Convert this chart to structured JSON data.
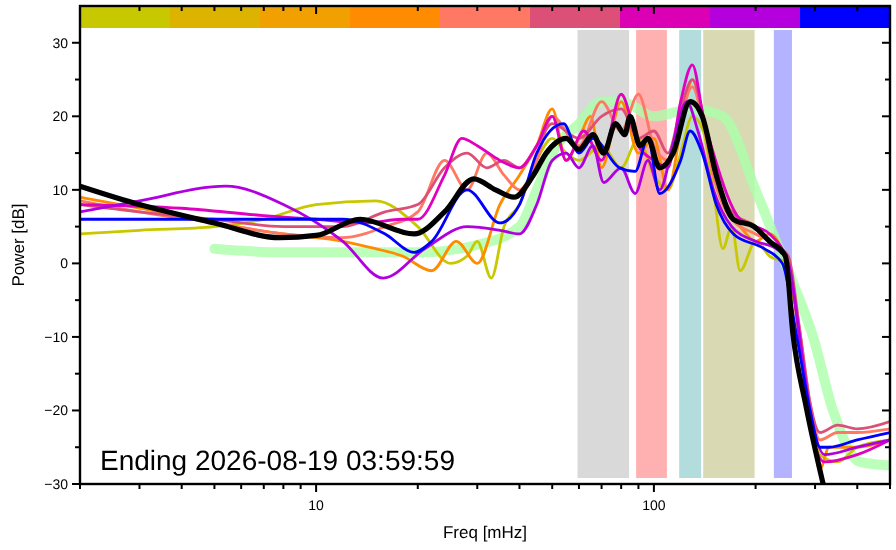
{
  "chart_data": {
    "type": "line",
    "xlabel": "Freq [mHz]",
    "ylabel": "Power [dB]",
    "log": "x",
    "xlim": [
      2,
      500
    ],
    "ylim": [
      -30,
      35
    ],
    "xticks": [
      {
        "value": 2,
        "label": null
      },
      {
        "value": 3,
        "label": null
      },
      {
        "value": 4,
        "label": null
      },
      {
        "value": 5,
        "label": null
      },
      {
        "value": 6,
        "label": null
      },
      {
        "value": 7,
        "label": null
      },
      {
        "value": 8,
        "label": null
      },
      {
        "value": 9,
        "label": null
      },
      10,
      {
        "value": 20,
        "label": null
      },
      {
        "value": 30,
        "label": null
      },
      {
        "value": 40,
        "label": null
      },
      {
        "value": 50,
        "label": null
      },
      {
        "value": 60,
        "label": null
      },
      {
        "value": 70,
        "label": null
      },
      {
        "value": 80,
        "label": null
      },
      {
        "value": 90,
        "label": null
      },
      100,
      {
        "value": 200,
        "label": null
      },
      {
        "value": 300,
        "label": null
      },
      {
        "value": 400,
        "label": null
      },
      {
        "value": 500,
        "label": null
      }
    ],
    "yticks": [
      -30,
      {
        "value": -25,
        "label": null
      },
      -20,
      {
        "value": -15,
        "label": null
      },
      -10,
      {
        "value": -5,
        "label": null
      },
      0,
      {
        "value": 5,
        "label": null
      },
      10,
      {
        "value": 15,
        "label": null
      },
      20,
      {
        "value": 25,
        "label": null
      },
      30
    ],
    "grid": false,
    "line_style": "solid",
    "bands": [
      {
        "axis": "x",
        "from": 59,
        "to": 85,
        "color": "#d9d9d9"
      },
      {
        "axis": "x",
        "from": 88,
        "to": 110,
        "color": "#ffb0b0"
      },
      {
        "axis": "x",
        "from": 118,
        "to": 139,
        "color": "#b3dcdc"
      },
      {
        "axis": "x",
        "from": 139,
        "to": 200,
        "color": "#d9d9b3"
      },
      {
        "axis": "x",
        "from": 225,
        "to": 258,
        "color": "#b3b3ff"
      }
    ],
    "annotations": [
      "Ending 2026-08-19 03:59:59"
    ],
    "series": [
      {
        "color": "#aaffaa",
        "x": [
          5,
          8,
          12,
          20,
          30,
          40,
          45,
          50,
          60,
          70,
          80,
          100,
          130,
          160,
          200,
          230,
          260,
          296,
          339,
          407,
          500
        ],
        "values": [
          2,
          1.5,
          1.5,
          1.5,
          2.5,
          5,
          10,
          15,
          19,
          22,
          22,
          20,
          21,
          20,
          10,
          3,
          -3,
          -10,
          -20,
          -27,
          -27.5
        ]
      },
      {
        "color": "#c8c800",
        "x": [
          2,
          3,
          5,
          7,
          10,
          15,
          20,
          25,
          28,
          30,
          33,
          36,
          40,
          45,
          50,
          55,
          60,
          70,
          80,
          90,
          100,
          110,
          120,
          130,
          140,
          150,
          160,
          170,
          180,
          200,
          220,
          250,
          270,
          290,
          310,
          350,
          400,
          500
        ],
        "values": [
          4,
          4.5,
          5,
          6,
          8,
          8.5,
          5,
          0,
          1,
          3,
          -2,
          5,
          8,
          14,
          17,
          15,
          14,
          16,
          13,
          17,
          12,
          10,
          15,
          20,
          18,
          10,
          2,
          5,
          -1,
          3,
          1,
          0,
          -10,
          -20,
          -26,
          -27,
          -25,
          -24
        ]
      },
      {
        "color": "#ff8c00",
        "x": [
          2,
          3,
          5,
          8,
          12,
          15,
          18,
          22,
          26,
          30,
          35,
          40,
          45,
          50,
          55,
          60,
          65,
          70,
          80,
          90,
          100,
          110,
          120,
          130,
          140,
          150,
          160,
          180,
          200,
          220,
          250,
          270,
          290,
          310,
          330,
          400,
          500
        ],
        "values": [
          9,
          7.5,
          5.5,
          4,
          3,
          2,
          1,
          -1,
          3,
          0,
          8,
          12,
          16,
          21,
          14,
          17,
          20,
          13,
          22,
          15,
          17,
          10,
          18,
          25,
          20,
          12,
          8,
          5,
          3,
          4,
          -1,
          -10,
          -20,
          -28,
          -25,
          -25,
          -24
        ]
      },
      {
        "color": "#ff7864",
        "x": [
          2,
          3,
          5,
          8,
          12,
          16,
          20,
          24,
          28,
          32,
          36,
          40,
          45,
          50,
          60,
          70,
          80,
          90,
          100,
          110,
          120,
          130,
          140,
          150,
          170,
          200,
          220,
          250,
          270,
          290,
          310,
          350,
          400,
          500
        ],
        "values": [
          8.5,
          7,
          5.5,
          4,
          3.5,
          5,
          7,
          14,
          10,
          15,
          12,
          10,
          14,
          20,
          16,
          22,
          18,
          23,
          16,
          14,
          20,
          24,
          19,
          12,
          6,
          4,
          3,
          0,
          -9,
          -19,
          -24,
          -23,
          -23,
          -22.5
        ]
      },
      {
        "color": "#dc5078",
        "x": [
          2,
          3,
          5,
          8,
          12,
          16,
          20,
          24,
          28,
          32,
          36,
          40,
          45,
          50,
          60,
          70,
          80,
          90,
          100,
          110,
          120,
          130,
          140,
          150,
          170,
          200,
          220,
          250,
          270,
          290,
          310,
          350,
          400,
          500
        ],
        "values": [
          8,
          7,
          6,
          5,
          5,
          7,
          8,
          13,
          15,
          13,
          14,
          13,
          16,
          19,
          17,
          20,
          21,
          17,
          18,
          15,
          21,
          25,
          20,
          13,
          7,
          5,
          3,
          1,
          -9,
          -19,
          -23,
          -22,
          -22.5,
          -21.5
        ]
      },
      {
        "color": "#e000c0",
        "x": [
          2,
          4,
          7,
          10,
          14,
          18,
          20,
          24,
          27,
          30,
          35,
          40,
          45,
          50,
          55,
          62,
          70,
          80,
          90,
          100,
          110,
          120,
          130,
          140,
          150,
          180,
          220,
          250,
          270,
          285,
          320,
          400,
          500
        ],
        "values": [
          8,
          7.5,
          6.5,
          6,
          5.5,
          6,
          6,
          12,
          17,
          16,
          14,
          13,
          16,
          20,
          14,
          18,
          14,
          23,
          16,
          14,
          13,
          22,
          27,
          20,
          15,
          6,
          4,
          0,
          -10,
          -20,
          -27,
          -26,
          -24
        ]
      },
      {
        "color": "#b000e0",
        "x": [
          2,
          3,
          5.4,
          8,
          12,
          15.8,
          21,
          28,
          35,
          40,
          45,
          50,
          55,
          60,
          66,
          71,
          80,
          88,
          96,
          104,
          115,
          125,
          135,
          150,
          170,
          200,
          230,
          250,
          270,
          290,
          320,
          400,
          500
        ],
        "values": [
          7,
          8.5,
          10.5,
          8,
          3,
          -2,
          2,
          5,
          4.5,
          4,
          8,
          14,
          15,
          13,
          16,
          11,
          13,
          9.5,
          14,
          10,
          17,
          22,
          18,
          10,
          5,
          3,
          2,
          0,
          -10,
          -20,
          -26,
          -25,
          -24
        ]
      },
      {
        "color": "#0000ff",
        "x": [
          2,
          5,
          8,
          12,
          16,
          19.5,
          22,
          28,
          35,
          40,
          45,
          54,
          60,
          66,
          79,
          88,
          96,
          104,
          120,
          128,
          139,
          153,
          172,
          212,
          240,
          265,
          290,
          310,
          330,
          400,
          500
        ],
        "values": [
          6,
          6,
          6,
          6,
          4,
          1.5,
          3,
          10,
          5.5,
          8,
          15,
          19,
          15,
          17,
          13,
          12.5,
          17,
          9.5,
          14,
          18,
          15,
          8,
          4,
          2,
          0,
          -10,
          -20,
          -25,
          -25,
          -24,
          -23
        ]
      },
      {
        "color": "#000000",
        "x": [
          2,
          3,
          5,
          7.8,
          10,
          13.5,
          19.5,
          24,
          29.3,
          34,
          38.5,
          44,
          48,
          55,
          60,
          66,
          71,
          77,
          82,
          85,
          91,
          96,
          104,
          114,
          128,
          139,
          153,
          172,
          198,
          220,
          245,
          258,
          282,
          317
        ],
        "values": [
          10.5,
          8,
          5.5,
          3.5,
          3.8,
          6,
          4,
          7,
          11.5,
          10,
          9,
          12,
          15,
          17,
          15.5,
          17.5,
          15,
          19,
          17.5,
          20,
          16,
          17,
          13,
          15,
          22,
          20,
          12,
          6,
          5,
          3,
          1,
          -9.6,
          -19.4,
          -30
        ]
      }
    ]
  }
}
